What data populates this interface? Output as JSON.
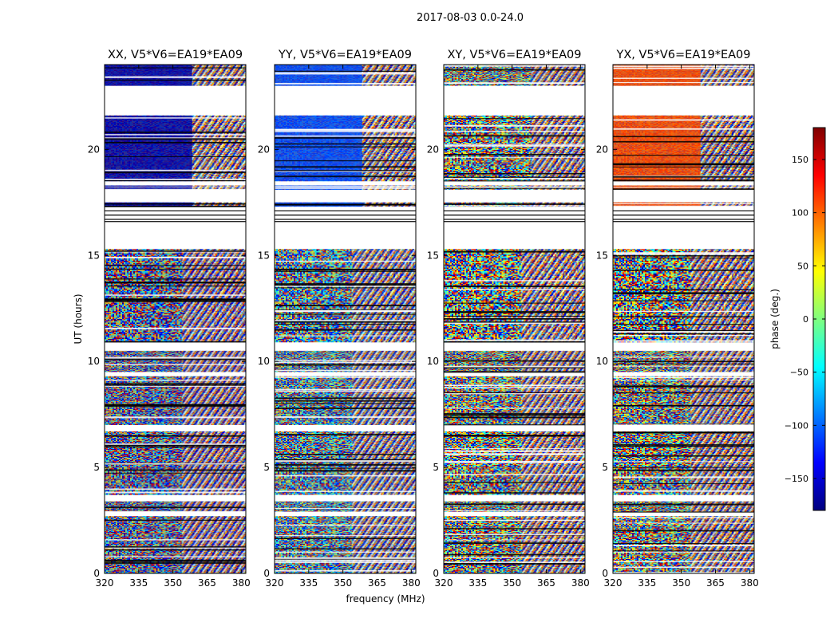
{
  "chart_data": {
    "type": "heatmap",
    "suptitle": "2017-08-03 0.0-24.0",
    "xlabel": "frequency (MHz)",
    "ylabel": "UT (hours)",
    "xlim": [
      320,
      382
    ],
    "ylim": [
      0,
      24
    ],
    "xticks": [
      320,
      335,
      350,
      365,
      380
    ],
    "yticks": [
      0,
      5,
      10,
      15,
      20
    ],
    "colorbar": {
      "label": "phase (deg.)",
      "range": [
        -180,
        180
      ],
      "ticks": [
        150,
        100,
        50,
        0,
        -50,
        -100,
        -150
      ],
      "tick_labels": [
        "150",
        "100",
        "50",
        "0",
        "−50",
        "−100",
        "−150"
      ],
      "colormap": "jet",
      "colors": [
        "#00007f",
        "#0000ff",
        "#007fff",
        "#00ffff",
        "#7fff7f",
        "#ffff00",
        "#ff7f00",
        "#ff0000",
        "#7f0000"
      ]
    },
    "panels": [
      {
        "title": "XX, V5*V6=EA19*EA09",
        "polarization": "XX",
        "dominant_phase_deg": -165
      },
      {
        "title": "YY, V5*V6=EA19*EA09",
        "polarization": "YY",
        "dominant_phase_deg": -110
      },
      {
        "title": "XY, V5*V6=EA19*EA09",
        "polarization": "XY",
        "dominant_phase_deg": null
      },
      {
        "title": "YX, V5*V6=EA19*EA09",
        "polarization": "YX",
        "dominant_phase_deg": 110
      }
    ],
    "flagged_ut_hours": [
      [
        22.7,
        23.0
      ],
      [
        21.6,
        22.7
      ],
      [
        18.3,
        18.5
      ],
      [
        17.5,
        18.1
      ],
      [
        15.3,
        17.3
      ],
      [
        10.5,
        10.9
      ],
      [
        9.3,
        9.5
      ],
      [
        6.7,
        7.0
      ],
      [
        3.4,
        3.7
      ],
      [
        2.7,
        2.9
      ]
    ]
  }
}
